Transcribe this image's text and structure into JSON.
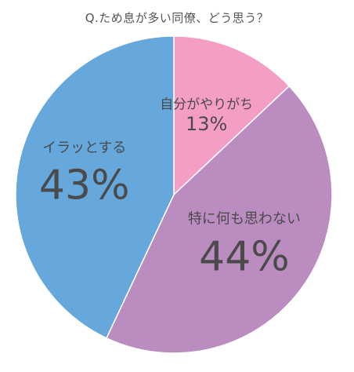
{
  "title": "Q.ため息が多い同僚、どう思う？",
  "chart_data": {
    "type": "pie",
    "start": "top",
    "direction": "clockwise",
    "slices": [
      {
        "label": "自分がやりがち",
        "value": 13,
        "value_label": "13%",
        "color": "#f59ec5"
      },
      {
        "label": "特に何も思わない",
        "value": 44,
        "value_label": "44%",
        "color": "#bb8cc0"
      },
      {
        "label": "イラッとする",
        "value": 43,
        "value_label": "43%",
        "color": "#66a8dc"
      }
    ]
  }
}
